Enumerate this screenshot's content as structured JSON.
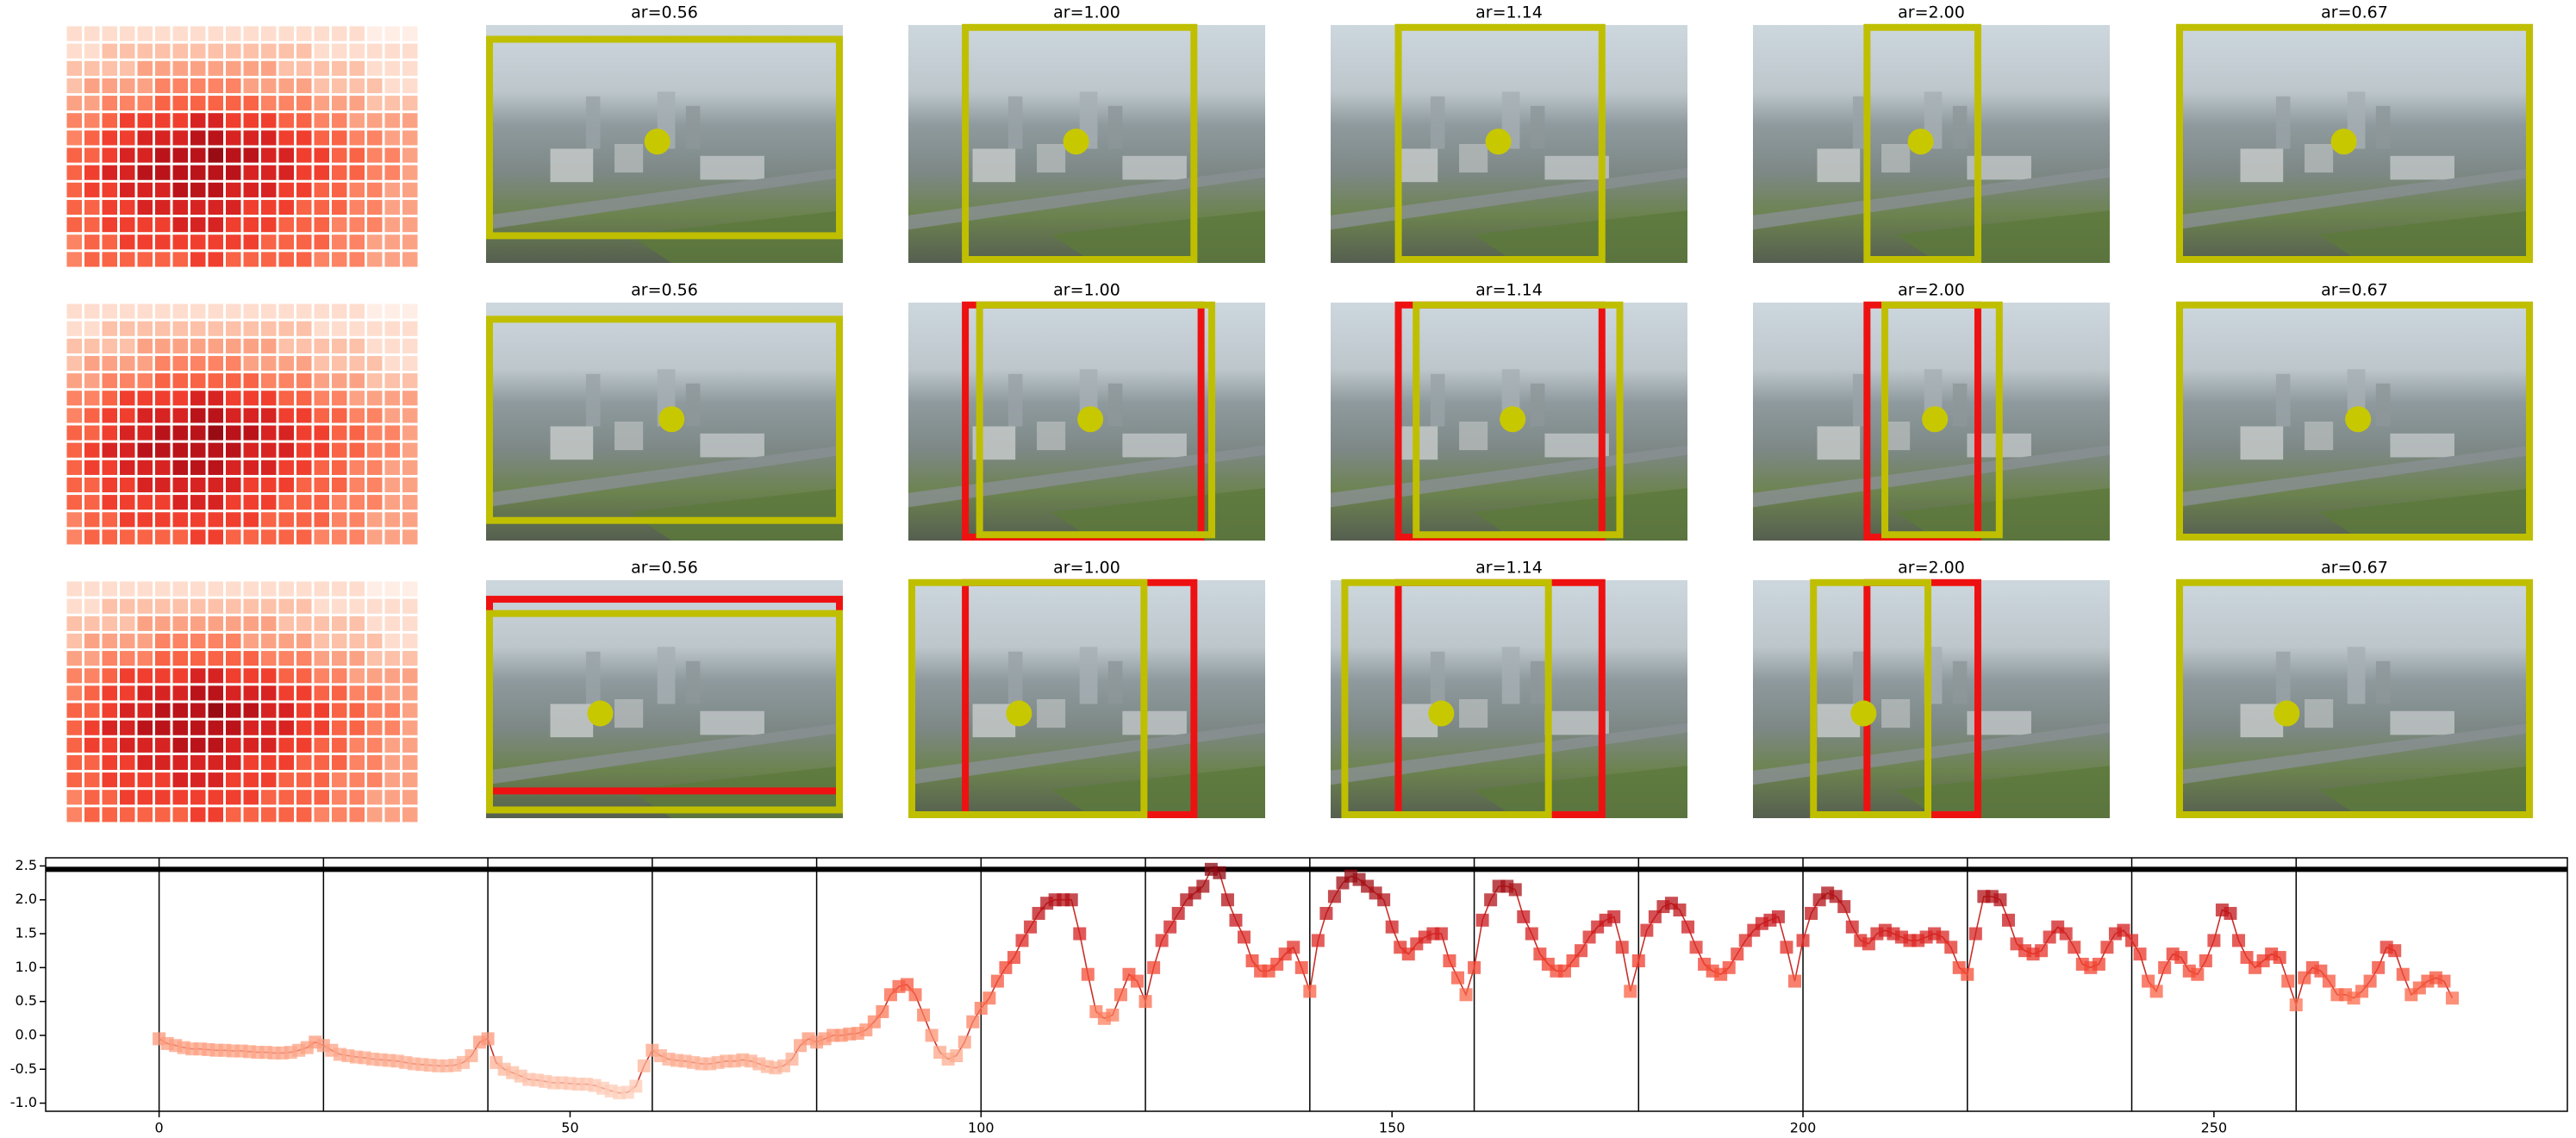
{
  "chart_data": [
    {
      "type": "heatmap",
      "colormap": "Reds",
      "vmax": 9,
      "values": [
        [
          1,
          1,
          1,
          1,
          1,
          1,
          1,
          1,
          1,
          1,
          1,
          1,
          1,
          1,
          1,
          1,
          1,
          0,
          0,
          0
        ],
        [
          1,
          1,
          2,
          2,
          2,
          2,
          2,
          2,
          2,
          2,
          2,
          2,
          2,
          2,
          1,
          1,
          1,
          1,
          1,
          1
        ],
        [
          2,
          2,
          2,
          2,
          3,
          3,
          3,
          3,
          3,
          3,
          3,
          3,
          2,
          2,
          2,
          2,
          2,
          1,
          1,
          1
        ],
        [
          2,
          3,
          3,
          3,
          3,
          4,
          4,
          4,
          4,
          4,
          3,
          3,
          3,
          3,
          2,
          2,
          2,
          2,
          1,
          1
        ],
        [
          3,
          3,
          4,
          4,
          4,
          5,
          5,
          5,
          5,
          5,
          5,
          4,
          4,
          4,
          3,
          3,
          3,
          2,
          2,
          2
        ],
        [
          4,
          4,
          5,
          6,
          6,
          6,
          6,
          7,
          7,
          6,
          6,
          6,
          5,
          5,
          4,
          4,
          3,
          3,
          3,
          3
        ],
        [
          4,
          5,
          6,
          6,
          7,
          7,
          7,
          8,
          8,
          7,
          7,
          7,
          6,
          6,
          5,
          5,
          4,
          4,
          3,
          3
        ],
        [
          5,
          5,
          6,
          7,
          7,
          8,
          8,
          8,
          9,
          8,
          8,
          7,
          7,
          6,
          6,
          5,
          5,
          4,
          4,
          3
        ],
        [
          5,
          6,
          7,
          7,
          8,
          8,
          8,
          8,
          8,
          8,
          7,
          7,
          7,
          6,
          6,
          5,
          5,
          4,
          4,
          3
        ],
        [
          5,
          6,
          6,
          7,
          7,
          7,
          8,
          8,
          8,
          7,
          7,
          7,
          6,
          6,
          5,
          5,
          4,
          4,
          3,
          3
        ],
        [
          5,
          5,
          6,
          6,
          7,
          7,
          7,
          7,
          7,
          7,
          6,
          6,
          6,
          5,
          5,
          5,
          4,
          4,
          3,
          3
        ],
        [
          5,
          5,
          6,
          6,
          6,
          6,
          7,
          7,
          7,
          6,
          6,
          6,
          5,
          5,
          5,
          4,
          4,
          4,
          3,
          3
        ],
        [
          4,
          5,
          5,
          6,
          6,
          6,
          6,
          6,
          6,
          6,
          6,
          5,
          5,
          5,
          5,
          4,
          4,
          3,
          3,
          3
        ],
        [
          4,
          5,
          5,
          5,
          5,
          5,
          5,
          6,
          6,
          5,
          5,
          5,
          5,
          5,
          4,
          4,
          4,
          3,
          3,
          3
        ]
      ]
    },
    {
      "type": "image-grid",
      "titles": [
        [
          "ar=0.56",
          "ar=1.00",
          "ar=1.14",
          "ar=2.00",
          "ar=0.67"
        ],
        [
          "ar=0.56",
          "ar=1.00",
          "ar=1.14",
          "ar=2.00",
          "ar=0.67"
        ],
        [
          "ar=0.56",
          "ar=1.00",
          "ar=1.14",
          "ar=2.00",
          "ar=0.67"
        ]
      ]
    },
    {
      "type": "line",
      "color": "#c8302a",
      "colormap": "Reds",
      "xlim": [
        -13.8,
        293
      ],
      "ylim": [
        -1.12,
        2.62
      ],
      "xticks": [
        0,
        50,
        100,
        150,
        200,
        250
      ],
      "yticks": [
        {
          "value": -1,
          "label": "-1.0"
        },
        -0.5,
        {
          "value": 0,
          "label": "0.0"
        },
        0.5,
        {
          "value": 1,
          "label": "1.0"
        },
        1.5,
        {
          "value": 2,
          "label": "2.0"
        },
        2.5
      ],
      "vlines": [
        0,
        20,
        40,
        60,
        80,
        100,
        120,
        140,
        160,
        180,
        200,
        220,
        240,
        260
      ],
      "hline": 2.45,
      "x": [
        0,
        1,
        2,
        3,
        4,
        5,
        6,
        7,
        8,
        9,
        10,
        11,
        12,
        13,
        14,
        15,
        16,
        17,
        18,
        19,
        20,
        21,
        22,
        23,
        24,
        25,
        26,
        27,
        28,
        29,
        30,
        31,
        32,
        33,
        34,
        35,
        36,
        37,
        38,
        39,
        40,
        41,
        42,
        43,
        44,
        45,
        46,
        47,
        48,
        49,
        50,
        51,
        52,
        53,
        54,
        55,
        56,
        57,
        58,
        59,
        60,
        61,
        62,
        63,
        64,
        65,
        66,
        67,
        68,
        69,
        70,
        71,
        72,
        73,
        74,
        75,
        76,
        77,
        78,
        79,
        80,
        81,
        82,
        83,
        84,
        85,
        86,
        87,
        88,
        89,
        90,
        91,
        92,
        93,
        94,
        95,
        96,
        97,
        98,
        99,
        100,
        101,
        102,
        103,
        104,
        105,
        106,
        107,
        108,
        109,
        110,
        111,
        112,
        113,
        114,
        115,
        116,
        117,
        118,
        119,
        120,
        121,
        122,
        123,
        124,
        125,
        126,
        127,
        128,
        129,
        130,
        131,
        132,
        133,
        134,
        135,
        136,
        137,
        138,
        139,
        140,
        141,
        142,
        143,
        144,
        145,
        146,
        147,
        148,
        149,
        150,
        151,
        152,
        153,
        154,
        155,
        156,
        157,
        158,
        159,
        160,
        161,
        162,
        163,
        164,
        165,
        166,
        167,
        168,
        169,
        170,
        171,
        172,
        173,
        174,
        175,
        176,
        177,
        178,
        179,
        180,
        181,
        182,
        183,
        184,
        185,
        186,
        187,
        188,
        189,
        190,
        191,
        192,
        193,
        194,
        195,
        196,
        197,
        198,
        199,
        200,
        201,
        202,
        203,
        204,
        205,
        206,
        207,
        208,
        209,
        210,
        211,
        212,
        213,
        214,
        215,
        216,
        217,
        218,
        219,
        220,
        221,
        222,
        223,
        224,
        225,
        226,
        227,
        228,
        229,
        230,
        231,
        232,
        233,
        234,
        235,
        236,
        237,
        238,
        239,
        240,
        241,
        242,
        243,
        244,
        245,
        246,
        247,
        248,
        249,
        250,
        251,
        252,
        253,
        254,
        255,
        256,
        257,
        258,
        259,
        260,
        261,
        262,
        263,
        264,
        265,
        266,
        267,
        268,
        269,
        270,
        271,
        272,
        273,
        274,
        275,
        276,
        277,
        278,
        279
      ],
      "values": [
        -0.05,
        -0.12,
        -0.15,
        -0.18,
        -0.2,
        -0.2,
        -0.21,
        -0.22,
        -0.22,
        -0.23,
        -0.23,
        -0.24,
        -0.25,
        -0.25,
        -0.26,
        -0.26,
        -0.25,
        -0.22,
        -0.18,
        -0.1,
        -0.15,
        -0.22,
        -0.28,
        -0.3,
        -0.32,
        -0.33,
        -0.35,
        -0.36,
        -0.37,
        -0.38,
        -0.4,
        -0.42,
        -0.43,
        -0.44,
        -0.45,
        -0.45,
        -0.44,
        -0.4,
        -0.3,
        -0.1,
        -0.05,
        -0.4,
        -0.5,
        -0.55,
        -0.6,
        -0.65,
        -0.66,
        -0.68,
        -0.7,
        -0.7,
        -0.71,
        -0.72,
        -0.72,
        -0.74,
        -0.78,
        -0.82,
        -0.85,
        -0.84,
        -0.75,
        -0.45,
        -0.22,
        -0.3,
        -0.35,
        -0.37,
        -0.38,
        -0.4,
        -0.42,
        -0.42,
        -0.4,
        -0.38,
        -0.38,
        -0.36,
        -0.38,
        -0.42,
        -0.46,
        -0.48,
        -0.45,
        -0.35,
        -0.15,
        -0.05,
        -0.1,
        -0.05,
        0.0,
        0.0,
        0.02,
        0.03,
        0.08,
        0.2,
        0.35,
        0.6,
        0.72,
        0.75,
        0.6,
        0.3,
        0.0,
        -0.25,
        -0.35,
        -0.3,
        -0.1,
        0.2,
        0.4,
        0.55,
        0.8,
        1.0,
        1.15,
        1.4,
        1.6,
        1.8,
        1.95,
        2.0,
        2.0,
        2.0,
        1.5,
        0.9,
        0.35,
        0.25,
        0.3,
        0.6,
        0.9,
        0.8,
        0.5,
        1.0,
        1.4,
        1.6,
        1.8,
        2.0,
        2.1,
        2.2,
        2.45,
        2.4,
        2.0,
        1.7,
        1.45,
        1.1,
        0.95,
        0.95,
        1.05,
        1.2,
        1.3,
        1.0,
        0.65,
        1.4,
        1.8,
        2.05,
        2.25,
        2.35,
        2.3,
        2.2,
        2.1,
        2.0,
        1.6,
        1.3,
        1.2,
        1.35,
        1.45,
        1.5,
        1.5,
        1.1,
        0.85,
        0.6,
        1.0,
        1.7,
        2.0,
        2.2,
        2.2,
        2.15,
        1.75,
        1.5,
        1.2,
        1.05,
        0.95,
        0.95,
        1.1,
        1.25,
        1.45,
        1.6,
        1.7,
        1.75,
        1.3,
        0.65,
        1.1,
        1.55,
        1.75,
        1.9,
        1.95,
        1.85,
        1.6,
        1.3,
        1.05,
        0.95,
        0.9,
        1.0,
        1.2,
        1.4,
        1.55,
        1.65,
        1.7,
        1.75,
        1.3,
        0.8,
        1.4,
        1.8,
        2.0,
        2.1,
        2.05,
        1.9,
        1.6,
        1.4,
        1.35,
        1.5,
        1.55,
        1.5,
        1.45,
        1.4,
        1.4,
        1.45,
        1.5,
        1.45,
        1.3,
        1.0,
        0.9,
        1.5,
        2.05,
        2.05,
        2.0,
        1.7,
        1.35,
        1.25,
        1.2,
        1.25,
        1.45,
        1.6,
        1.5,
        1.3,
        1.05,
        1.0,
        1.05,
        1.3,
        1.5,
        1.55,
        1.4,
        1.2,
        0.8,
        0.65,
        1.0,
        1.2,
        1.15,
        0.95,
        0.9,
        1.1,
        1.4,
        1.85,
        1.8,
        1.4,
        1.15,
        1.0,
        1.1,
        1.2,
        1.15,
        0.8,
        0.45,
        0.85,
        1.0,
        0.95,
        0.8,
        0.6,
        0.6,
        0.55,
        0.65,
        0.8,
        1.0,
        1.3,
        1.25,
        0.9,
        0.6,
        0.7,
        0.8,
        0.85,
        0.8,
        0.55
      ]
    }
  ]
}
